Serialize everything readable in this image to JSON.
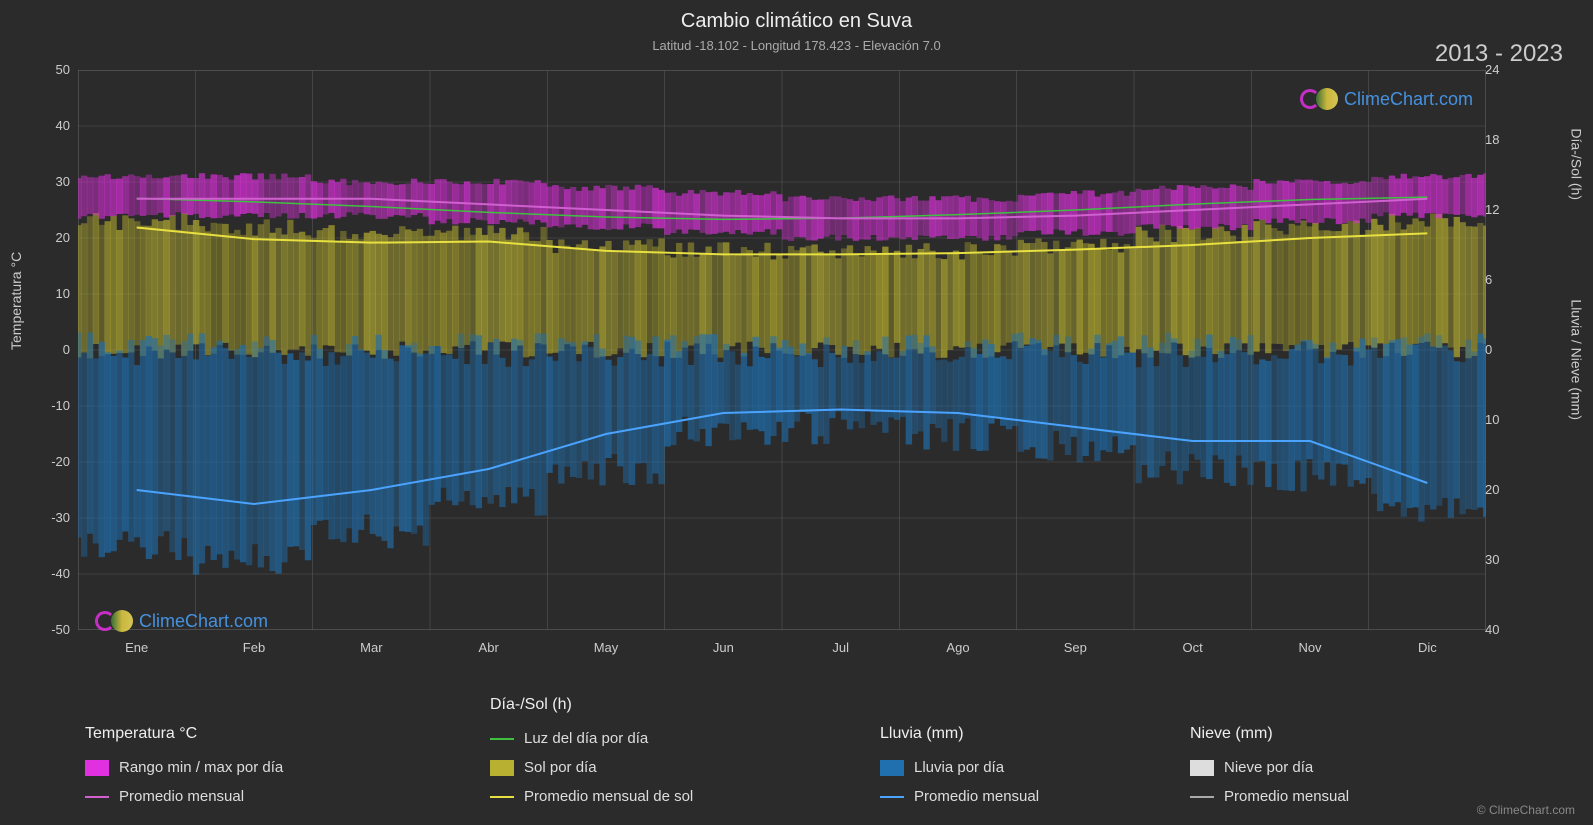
{
  "title": "Cambio climático en Suva",
  "subtitle": "Latitud -18.102 - Longitud 178.423 - Elevación 7.0",
  "year_range": "2013 - 2023",
  "watermark_text": "ClimeChart.com",
  "copyright": "© ClimeChart.com",
  "background_color": "#2b2b2b",
  "grid_color": "#555555",
  "text_color": "#dddddd",
  "chart": {
    "months": [
      "Ene",
      "Feb",
      "Mar",
      "Abr",
      "May",
      "Jun",
      "Jul",
      "Ago",
      "Sep",
      "Oct",
      "Nov",
      "Dic"
    ],
    "left_axis": {
      "label": "Temperatura °C",
      "min": -50,
      "max": 50,
      "step": 10,
      "ticks": [
        50,
        40,
        30,
        20,
        10,
        0,
        -10,
        -20,
        -30,
        -40,
        -50
      ]
    },
    "right_axis_top": {
      "label": "Día-/Sol (h)",
      "min": 0,
      "max": 24,
      "step": 6,
      "ticks": [
        24,
        18,
        12,
        6,
        0
      ]
    },
    "right_axis_bottom": {
      "label": "Lluvia / Nieve (mm)",
      "min": 0,
      "max": 40,
      "step": 10,
      "ticks": [
        0,
        10,
        20,
        30,
        40
      ]
    },
    "series": {
      "temp_range_band": {
        "type": "band",
        "color": "#e030e0",
        "low": [
          24,
          24,
          24,
          23,
          22,
          21,
          20,
          20,
          21,
          22,
          23,
          24
        ],
        "high": [
          31,
          31,
          30,
          30,
          29,
          28,
          27,
          27,
          28,
          29,
          30,
          31
        ]
      },
      "temp_avg": {
        "type": "line",
        "color": "#d060d0",
        "width": 2,
        "values": [
          27,
          27,
          27,
          26,
          25,
          24,
          23.5,
          23.5,
          24,
          25,
          26,
          27
        ]
      },
      "daylight": {
        "type": "line",
        "color": "#40c040",
        "width": 1.5,
        "values": [
          13.0,
          12.7,
          12.3,
          11.8,
          11.4,
          11.2,
          11.3,
          11.6,
          12.0,
          12.5,
          12.9,
          13.1
        ]
      },
      "sun_band": {
        "type": "band",
        "color": "#b8b030",
        "low": [
          0,
          0,
          0,
          0,
          0,
          0,
          0,
          0,
          0,
          0,
          0,
          0
        ],
        "high": [
          11,
          10.5,
          10,
          10,
          9,
          8.5,
          8.5,
          8.5,
          9,
          10,
          10.5,
          11
        ]
      },
      "sun_avg": {
        "type": "line",
        "color": "#e8e040",
        "width": 2,
        "values": [
          10.5,
          9.5,
          9.2,
          9.3,
          8.5,
          8.2,
          8.2,
          8.3,
          8.6,
          9,
          9.6,
          10
        ]
      },
      "rain_band": {
        "type": "band",
        "color": "#2070b0",
        "low": [
          28,
          30,
          26,
          22,
          17,
          12,
          11,
          12,
          14,
          17,
          18,
          23
        ],
        "high": [
          0,
          0,
          0,
          0,
          0,
          0,
          0,
          0,
          0,
          0,
          0,
          0
        ]
      },
      "rain_avg": {
        "type": "line",
        "color": "#4aa3ff",
        "width": 2,
        "values": [
          20,
          22,
          20,
          17,
          12,
          9,
          8.5,
          9,
          11,
          13,
          13,
          19
        ]
      }
    }
  },
  "legend": {
    "temperature": {
      "title": "Temperatura °C",
      "items": [
        {
          "swatch": "#e030e0",
          "type": "box",
          "label": "Rango min / max por día"
        },
        {
          "swatch": "#d060d0",
          "type": "line",
          "label": "Promedio mensual"
        }
      ]
    },
    "daysun": {
      "title": "Día-/Sol (h)",
      "items": [
        {
          "swatch": "#40c040",
          "type": "line",
          "label": "Luz del día por día"
        },
        {
          "swatch": "#b8b030",
          "type": "box",
          "label": "Sol por día"
        },
        {
          "swatch": "#e8e040",
          "type": "line",
          "label": "Promedio mensual de sol"
        }
      ]
    },
    "rain": {
      "title": "Lluvia (mm)",
      "items": [
        {
          "swatch": "#2070b0",
          "type": "box",
          "label": "Lluvia por día"
        },
        {
          "swatch": "#4aa3ff",
          "type": "line",
          "label": "Promedio mensual"
        }
      ]
    },
    "snow": {
      "title": "Nieve (mm)",
      "items": [
        {
          "swatch": "#dddddd",
          "type": "box",
          "label": "Nieve por día"
        },
        {
          "swatch": "#aaaaaa",
          "type": "line",
          "label": "Promedio mensual"
        }
      ]
    }
  }
}
